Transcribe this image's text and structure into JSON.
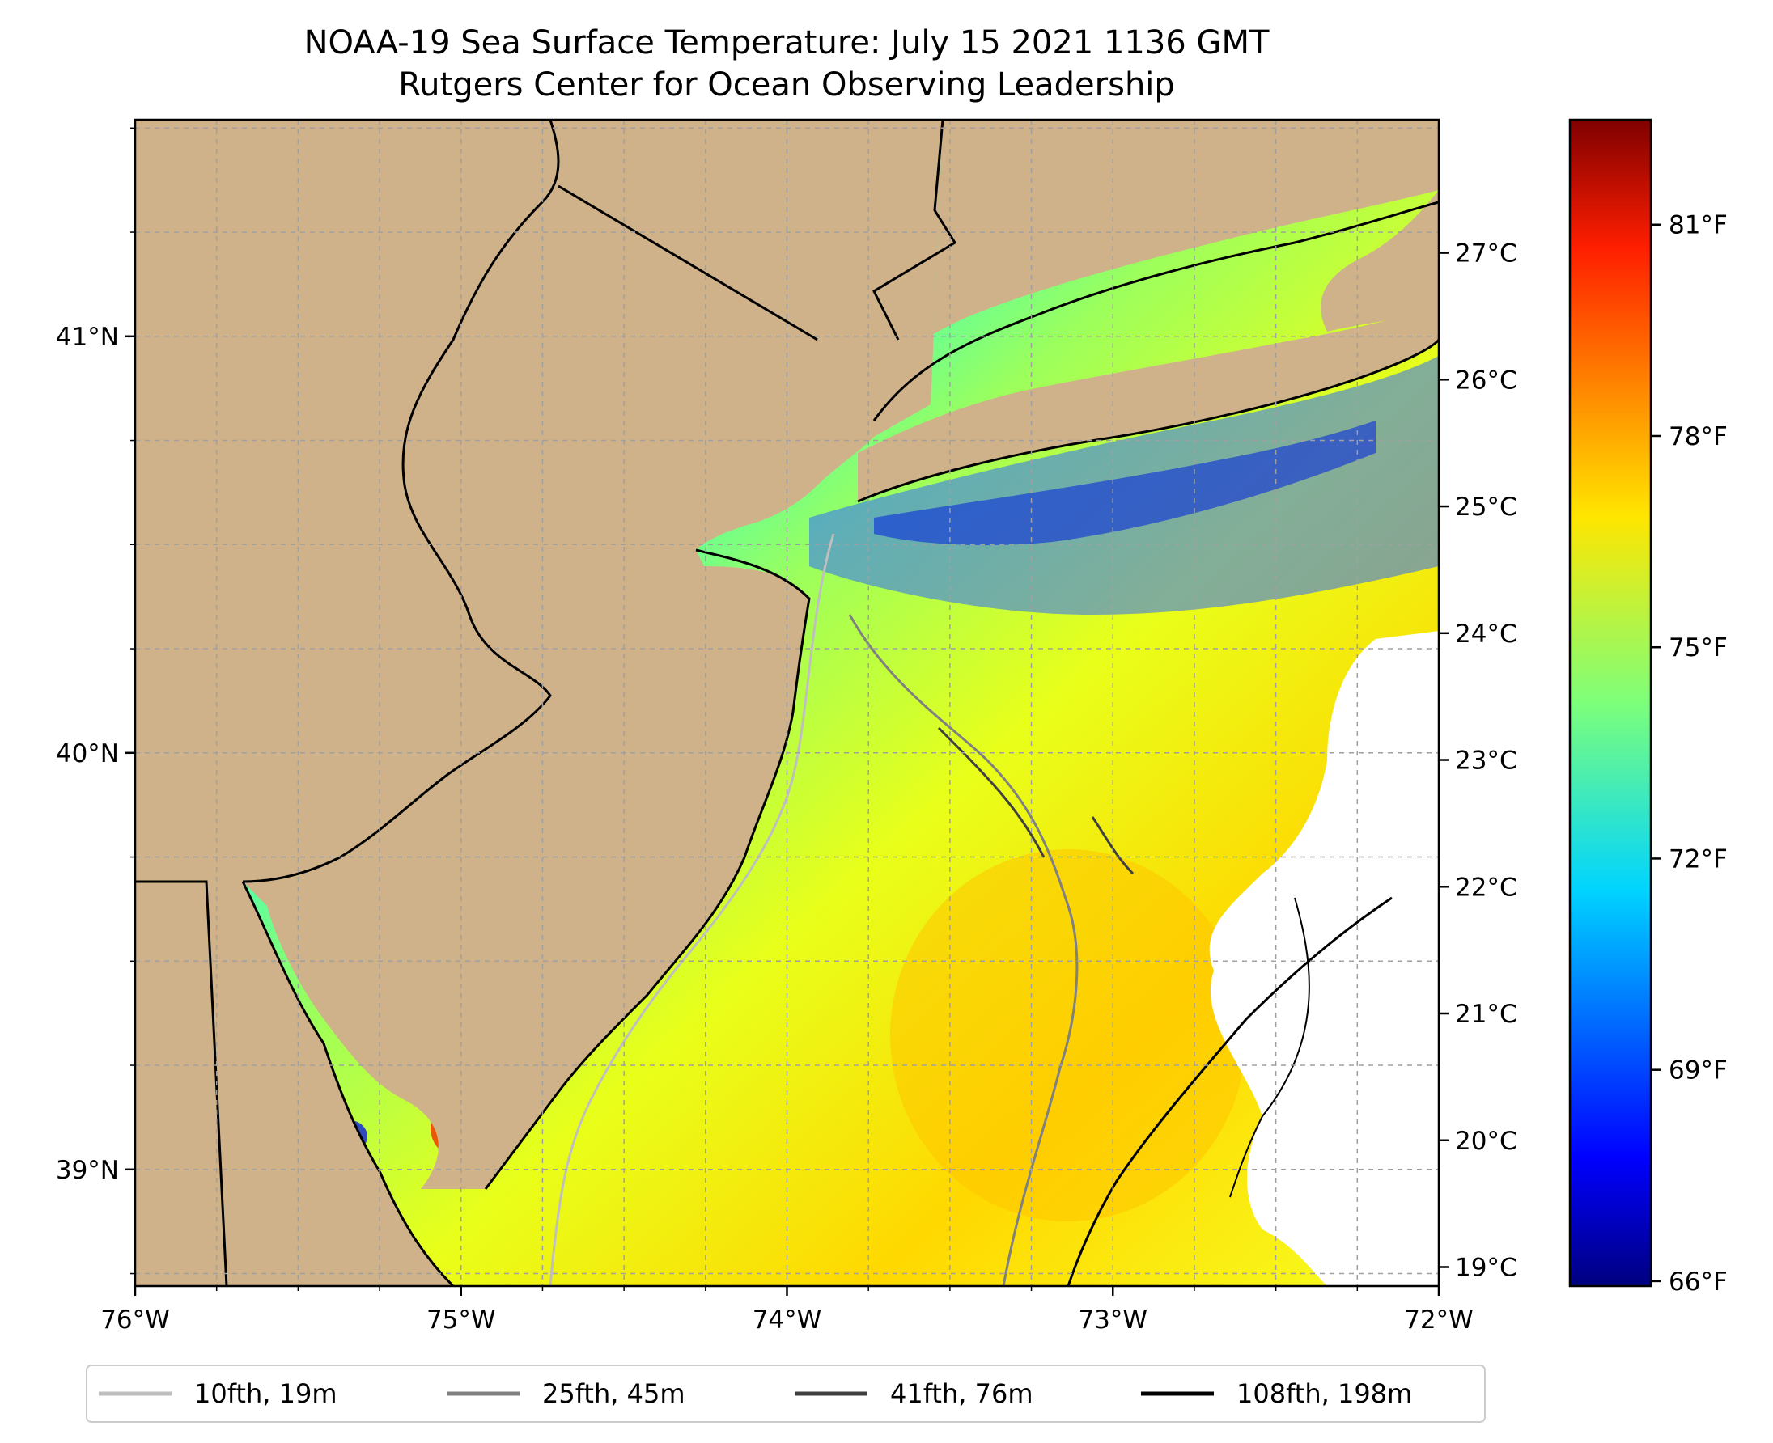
{
  "title": "NOAA-19 Sea Surface Temperature: July 15 2021 1136 GMT",
  "subtitle": "Rutgers Center for Ocean Observing Leadership",
  "map": {
    "x_ticks": [
      {
        "value": -76,
        "label": "76°W"
      },
      {
        "value": -75,
        "label": "75°W"
      },
      {
        "value": -74,
        "label": "74°W"
      },
      {
        "value": -73,
        "label": "73°W"
      },
      {
        "value": -72,
        "label": "72°W"
      }
    ],
    "y_ticks": [
      {
        "value": 41,
        "label": "41°N"
      },
      {
        "value": 40,
        "label": "40°N"
      },
      {
        "value": 39,
        "label": "39°N"
      }
    ],
    "lon_range": [
      -76,
      -72
    ],
    "lat_range": [
      38.72,
      41.52
    ],
    "gridlines": true,
    "land_color": "#cfb28a"
  },
  "colorbar": {
    "colormap": "jet",
    "celsius_range": [
      18.85,
      28.05
    ],
    "celsius_ticks": [
      {
        "value": 19,
        "label": "19°C"
      },
      {
        "value": 20,
        "label": "20°C"
      },
      {
        "value": 21,
        "label": "21°C"
      },
      {
        "value": 22,
        "label": "22°C"
      },
      {
        "value": 23,
        "label": "23°C"
      },
      {
        "value": 24,
        "label": "24°C"
      },
      {
        "value": 25,
        "label": "25°C"
      },
      {
        "value": 26,
        "label": "26°C"
      },
      {
        "value": 27,
        "label": "27°C"
      }
    ],
    "fahrenheit_ticks": [
      {
        "value": 66,
        "label": "66°F"
      },
      {
        "value": 69,
        "label": "69°F"
      },
      {
        "value": 72,
        "label": "72°F"
      },
      {
        "value": 75,
        "label": "75°F"
      },
      {
        "value": 78,
        "label": "78°F"
      },
      {
        "value": 81,
        "label": "81°F"
      }
    ]
  },
  "legend": {
    "placement": "bottom",
    "entries": [
      {
        "label": "10fth, 19m",
        "color": "#bfbfbf"
      },
      {
        "label": "25fth, 45m",
        "color": "#808080"
      },
      {
        "label": "41fth, 76m",
        "color": "#404040"
      },
      {
        "label": "108fth, 198m",
        "color": "#000000"
      }
    ]
  }
}
